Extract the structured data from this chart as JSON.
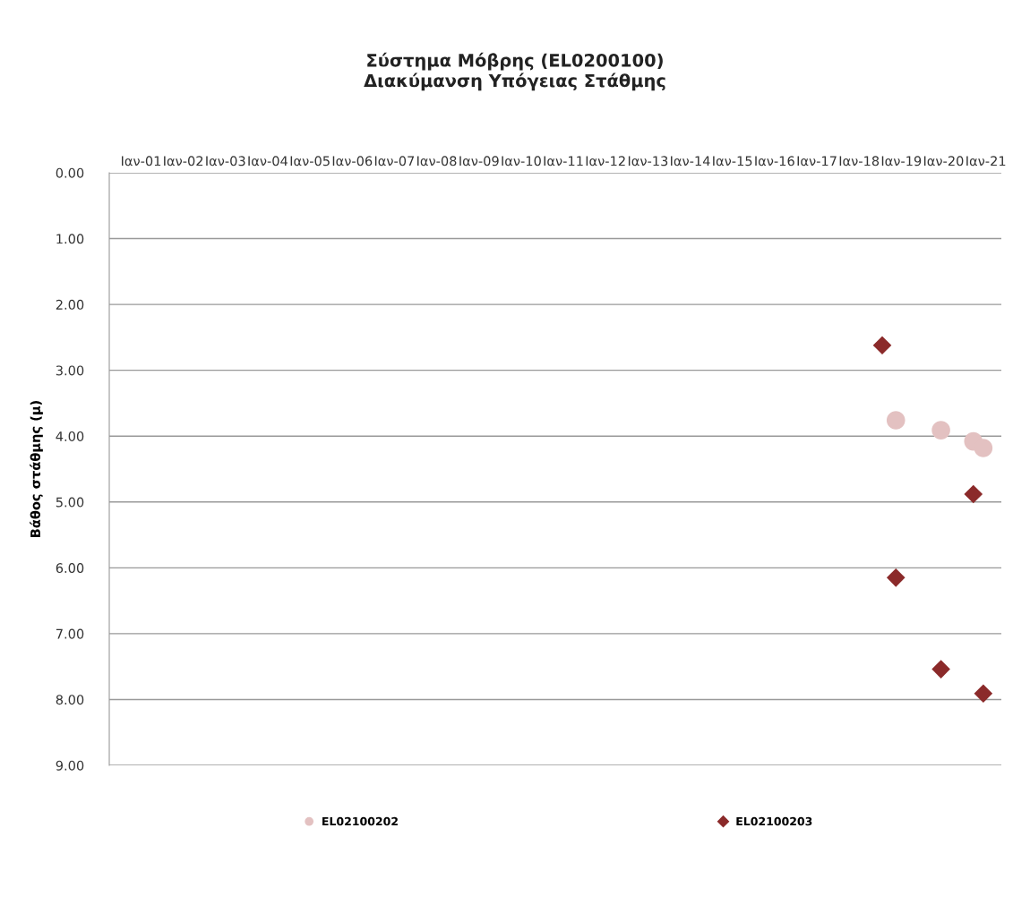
{
  "chart_data": {
    "type": "scatter",
    "title": "Σύστημα Μόβρης (EL0200100)\nΔιακύμανση Υπόγειας Στάθμης",
    "ylabel": "Βάθος στάθμης (μ)",
    "series": [
      {
        "name": "EL02100202",
        "color": "#e3c1c1",
        "marker": "circle",
        "x": [
          "2018-11-15",
          "2019-12-10",
          "2020-09-15",
          "2020-12-10"
        ],
        "values": [
          3.76,
          3.91,
          4.08,
          4.18
        ]
      },
      {
        "name": "EL02100203",
        "color": "#8b2a2a",
        "marker": "diamond",
        "x": [
          "2018-07-20",
          "2018-11-15",
          "2019-12-10",
          "2020-09-15",
          "2020-12-10"
        ],
        "values": [
          2.62,
          6.15,
          7.54,
          4.88,
          7.91
        ]
      }
    ],
    "xlim": [
      "2000-04-01",
      "2021-05-15"
    ],
    "xticks": [
      {
        "value": "2001-01-01",
        "label": "Ιαν-01"
      },
      {
        "value": "2002-01-01",
        "label": "Ιαν-02"
      },
      {
        "value": "2003-01-01",
        "label": "Ιαν-03"
      },
      {
        "value": "2004-01-01",
        "label": "Ιαν-04"
      },
      {
        "value": "2005-01-01",
        "label": "Ιαν-05"
      },
      {
        "value": "2006-01-01",
        "label": "Ιαν-06"
      },
      {
        "value": "2007-01-01",
        "label": "Ιαν-07"
      },
      {
        "value": "2008-01-01",
        "label": "Ιαν-08"
      },
      {
        "value": "2009-01-01",
        "label": "Ιαν-09"
      },
      {
        "value": "2010-01-01",
        "label": "Ιαν-10"
      },
      {
        "value": "2011-01-01",
        "label": "Ιαν-11"
      },
      {
        "value": "2012-01-01",
        "label": "Ιαν-12"
      },
      {
        "value": "2013-01-01",
        "label": "Ιαν-13"
      },
      {
        "value": "2014-01-01",
        "label": "Ιαν-14"
      },
      {
        "value": "2015-01-01",
        "label": "Ιαν-15"
      },
      {
        "value": "2016-01-01",
        "label": "Ιαν-16"
      },
      {
        "value": "2017-01-01",
        "label": "Ιαν-17"
      },
      {
        "value": "2018-01-01",
        "label": "Ιαν-18"
      },
      {
        "value": "2019-01-01",
        "label": "Ιαν-19"
      },
      {
        "value": "2020-01-01",
        "label": "Ιαν-20"
      },
      {
        "value": "2021-01-01",
        "label": "Ιαν-21"
      }
    ],
    "ylim": [
      9,
      0
    ],
    "yticks": [
      {
        "value": 0,
        "label": "0.00"
      },
      {
        "value": 1,
        "label": "1.00"
      },
      {
        "value": 2,
        "label": "2.00"
      },
      {
        "value": 3,
        "label": "3.00"
      },
      {
        "value": 4,
        "label": "4.00"
      },
      {
        "value": 5,
        "label": "5.00"
      },
      {
        "value": 6,
        "label": "6.00"
      },
      {
        "value": 7,
        "label": "7.00"
      },
      {
        "value": 8,
        "label": "8.00"
      },
      {
        "value": 9,
        "label": "9.00"
      }
    ],
    "grid": "y",
    "legend": "bottom"
  }
}
